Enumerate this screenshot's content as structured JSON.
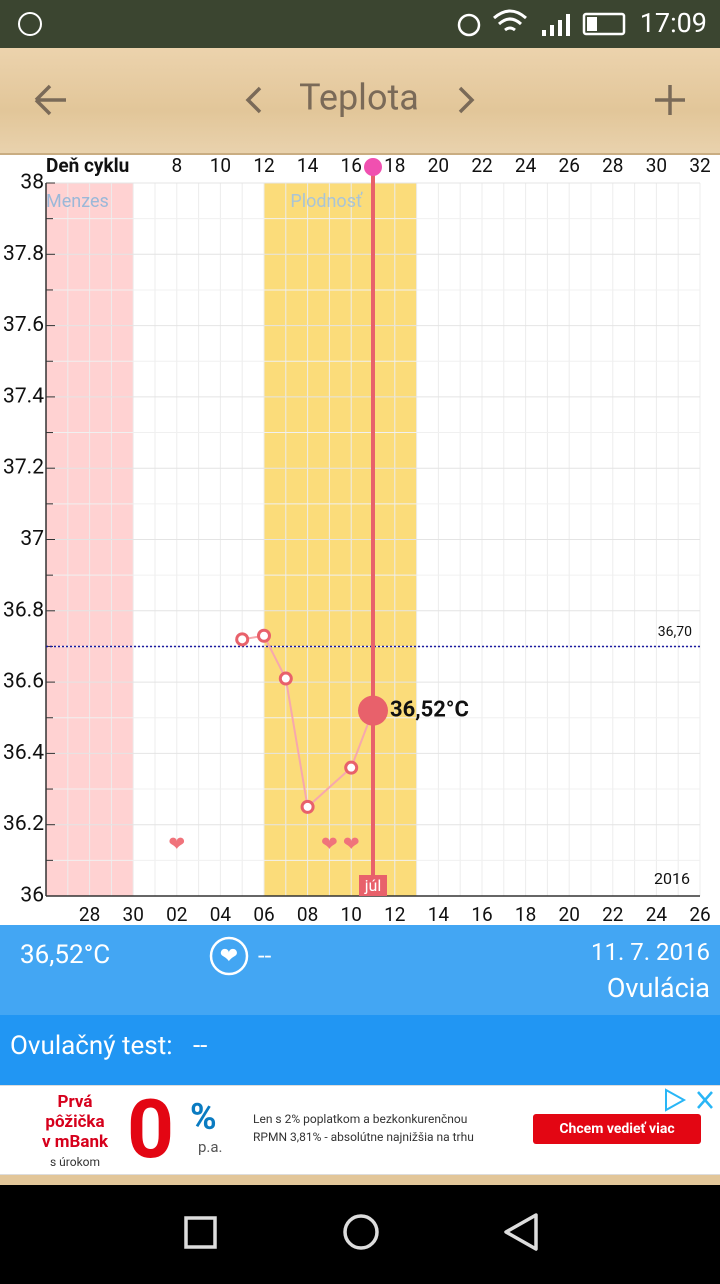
{
  "status_bar": {
    "time": "17:09"
  },
  "header": {
    "title": "Teplota"
  },
  "chart_data": {
    "type": "line",
    "x_axis_label": "Deň cyklu",
    "xlim": [
      2,
      32
    ],
    "xticks": [
      8,
      10,
      12,
      14,
      16,
      18,
      20,
      22,
      24,
      26,
      28,
      30,
      32
    ],
    "ylim": [
      36,
      38
    ],
    "yticks": [
      36,
      36.2,
      36.4,
      36.6,
      36.8,
      37,
      37.2,
      37.4,
      37.6,
      37.8,
      38
    ],
    "date_labels": [
      "28",
      "30",
      "02",
      "04",
      "06",
      "08",
      "10",
      "12",
      "14",
      "16",
      "18",
      "20",
      "22",
      "24",
      "26"
    ],
    "year": "2016",
    "month_label": "júl",
    "bands": [
      {
        "name": "Menzes",
        "start": 2,
        "end": 6,
        "color": "#ffd2d2"
      },
      {
        "name": "Plodnosť",
        "start": 12,
        "end": 19,
        "color": "#fbdc7a"
      }
    ],
    "x": [
      11,
      12,
      13,
      14,
      16,
      17
    ],
    "values": [
      36.72,
      36.73,
      36.61,
      36.25,
      36.36,
      36.52
    ],
    "value_labels": [
      null,
      null,
      null,
      null,
      null,
      "36,52°C"
    ],
    "color": "#e8616b",
    "selected_x": 17,
    "coverline": {
      "value": 36.7,
      "label": "36,70",
      "color": "#1a1aa0"
    },
    "hearts": [
      8,
      15,
      16
    ],
    "grid": true
  },
  "info": {
    "temperature": "36,52°C",
    "intercourse": "--",
    "date": "11. 7. 2016",
    "phase": "Ovulácia",
    "test_label": "Ovulačný test:",
    "test_value": "--"
  },
  "ad": {
    "headline": [
      "Prvá",
      "pôžička",
      "v mBank",
      "s úrokom"
    ],
    "big": "0",
    "percent": "%",
    "pa": "p.a.",
    "text_1": "Len s 2% poplatkom a bezkonkurenčnou",
    "text_2": "RPMN 3,81% - absolútne najnižšia na trhu",
    "button": "Chcem vedieť viac"
  }
}
